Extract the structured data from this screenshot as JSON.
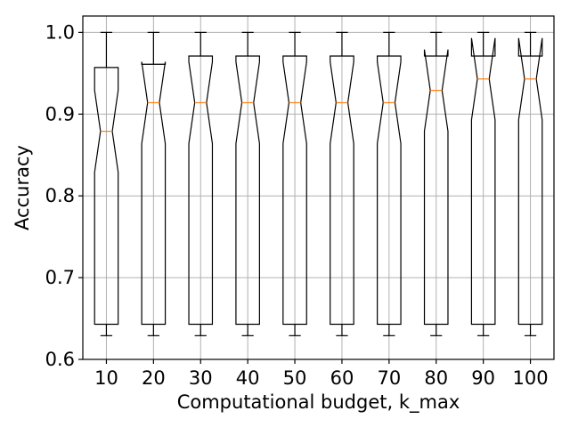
{
  "chart_data": {
    "type": "box",
    "notched": true,
    "xlabel": "Computational budget, k_max",
    "ylabel": "Accuracy",
    "ylim": [
      0.6,
      1.02
    ],
    "yticks": [
      "0.6",
      "0.7",
      "0.8",
      "0.9",
      "1.0"
    ],
    "grid": true,
    "colors": {
      "box": "#000000",
      "median": "#ff7f0e",
      "grid": "#b0b0b0"
    },
    "categories": [
      "10",
      "20",
      "30",
      "40",
      "50",
      "60",
      "70",
      "80",
      "90",
      "100"
    ],
    "boxes": [
      {
        "whisker_low": 0.629,
        "q1": 0.643,
        "median": 0.879,
        "q3": 0.957,
        "whisker_high": 1.0,
        "notch_low": 0.829,
        "notch_high": 0.929
      },
      {
        "whisker_low": 0.629,
        "q1": 0.643,
        "median": 0.914,
        "q3": 0.961,
        "whisker_high": 1.0,
        "notch_low": 0.864,
        "notch_high": 0.964
      },
      {
        "whisker_low": 0.629,
        "q1": 0.643,
        "median": 0.914,
        "q3": 0.971,
        "whisker_high": 1.0,
        "notch_low": 0.864,
        "notch_high": 0.964
      },
      {
        "whisker_low": 0.629,
        "q1": 0.643,
        "median": 0.914,
        "q3": 0.971,
        "whisker_high": 1.0,
        "notch_low": 0.864,
        "notch_high": 0.964
      },
      {
        "whisker_low": 0.629,
        "q1": 0.643,
        "median": 0.914,
        "q3": 0.971,
        "whisker_high": 1.0,
        "notch_low": 0.864,
        "notch_high": 0.964
      },
      {
        "whisker_low": 0.629,
        "q1": 0.643,
        "median": 0.914,
        "q3": 0.971,
        "whisker_high": 1.0,
        "notch_low": 0.864,
        "notch_high": 0.964
      },
      {
        "whisker_low": 0.629,
        "q1": 0.643,
        "median": 0.914,
        "q3": 0.971,
        "whisker_high": 1.0,
        "notch_low": 0.864,
        "notch_high": 0.964
      },
      {
        "whisker_low": 0.629,
        "q1": 0.643,
        "median": 0.929,
        "q3": 0.971,
        "whisker_high": 1.0,
        "notch_low": 0.879,
        "notch_high": 0.979
      },
      {
        "whisker_low": 0.629,
        "q1": 0.643,
        "median": 0.943,
        "q3": 0.971,
        "whisker_high": 1.0,
        "notch_low": 0.893,
        "notch_high": 0.993
      },
      {
        "whisker_low": 0.629,
        "q1": 0.643,
        "median": 0.943,
        "q3": 0.971,
        "whisker_high": 1.0,
        "notch_low": 0.893,
        "notch_high": 0.993
      }
    ]
  }
}
